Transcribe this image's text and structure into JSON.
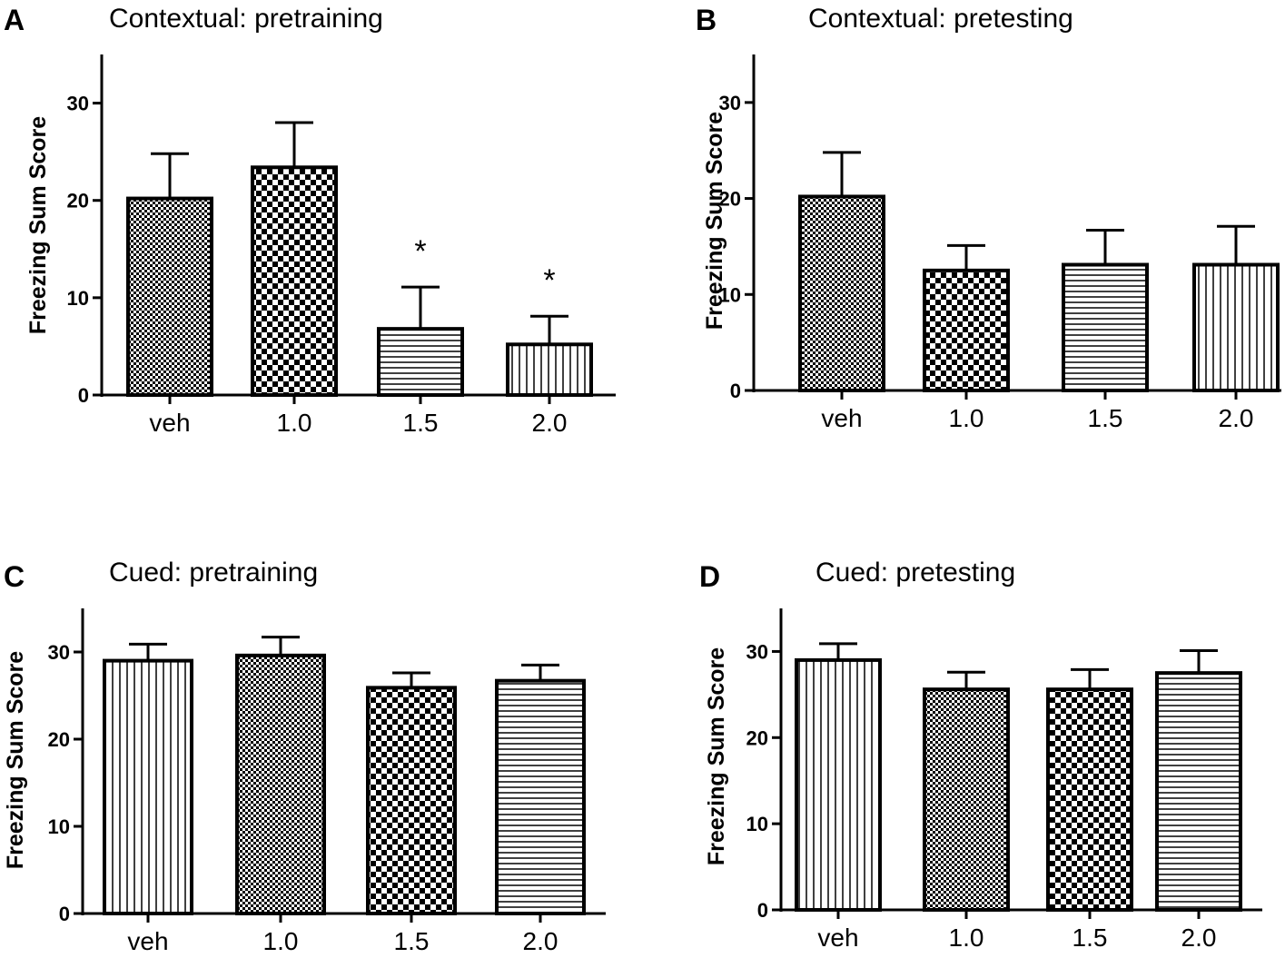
{
  "chart_data": [
    {
      "type": "bar",
      "panel_letter": "A",
      "title": "Contextual: pretraining",
      "ylabel": "Freezing Sum Score",
      "xlabel": "",
      "categories": [
        "veh",
        "1.0",
        "1.5",
        "2.0"
      ],
      "values": [
        20.2,
        23.4,
        6.8,
        5.2
      ],
      "errors": [
        4.6,
        4.6,
        4.3,
        2.9
      ],
      "patterns": [
        "fine-check",
        "check",
        "hlines",
        "vlines"
      ],
      "annotations": [
        "",
        "",
        "*",
        "*"
      ],
      "ylim": [
        0,
        35
      ],
      "yticks": [
        0,
        10,
        20,
        30
      ],
      "ytick_labels": [
        "0",
        "10",
        "20",
        "30"
      ]
    },
    {
      "type": "bar",
      "panel_letter": "B",
      "title": "Contextual: pretesting",
      "ylabel": "Freezing Sum Score",
      "xlabel": "",
      "categories": [
        "veh",
        "1.0",
        "1.5",
        "2.0"
      ],
      "values": [
        20.2,
        12.5,
        13.1,
        13.1
      ],
      "errors": [
        4.6,
        2.6,
        3.6,
        4.0
      ],
      "patterns": [
        "fine-check",
        "check",
        "hlines",
        "vlines"
      ],
      "annotations": [
        "",
        "",
        "",
        ""
      ],
      "ylim": [
        0,
        35
      ],
      "yticks": [
        0,
        10,
        20,
        30
      ],
      "ytick_labels": [
        "0",
        "10",
        "20",
        "30"
      ]
    },
    {
      "type": "bar",
      "panel_letter": "C",
      "title": "Cued: pretraining",
      "ylabel": "Freezing Sum Score",
      "xlabel": "",
      "categories": [
        "veh",
        "1.0",
        "1.5",
        "2.0"
      ],
      "values": [
        29.0,
        29.6,
        25.9,
        26.7
      ],
      "errors": [
        1.9,
        2.1,
        1.7,
        1.8
      ],
      "patterns": [
        "vlines",
        "fine-check",
        "check",
        "hlines"
      ],
      "annotations": [
        "",
        "",
        "",
        ""
      ],
      "ylim": [
        0,
        35
      ],
      "yticks": [
        0,
        10,
        20,
        30
      ],
      "ytick_labels": [
        "0",
        "10",
        "20",
        "30"
      ]
    },
    {
      "type": "bar",
      "panel_letter": "D",
      "title": "Cued: pretesting",
      "ylabel": "Freezing Sum Score",
      "xlabel": "",
      "categories": [
        "veh",
        "1.0",
        "1.5",
        "2.0"
      ],
      "values": [
        29.0,
        25.6,
        25.6,
        27.5
      ],
      "errors": [
        1.9,
        2.0,
        2.3,
        2.6
      ],
      "patterns": [
        "vlines",
        "fine-check",
        "check",
        "hlines"
      ],
      "annotations": [
        "",
        "",
        "",
        ""
      ],
      "ylim": [
        0,
        35
      ],
      "yticks": [
        0,
        10,
        20,
        30
      ],
      "ytick_labels": [
        "0",
        "10",
        "20",
        "30"
      ]
    }
  ],
  "colors": {
    "ink": "#000000",
    "background": "#ffffff"
  }
}
